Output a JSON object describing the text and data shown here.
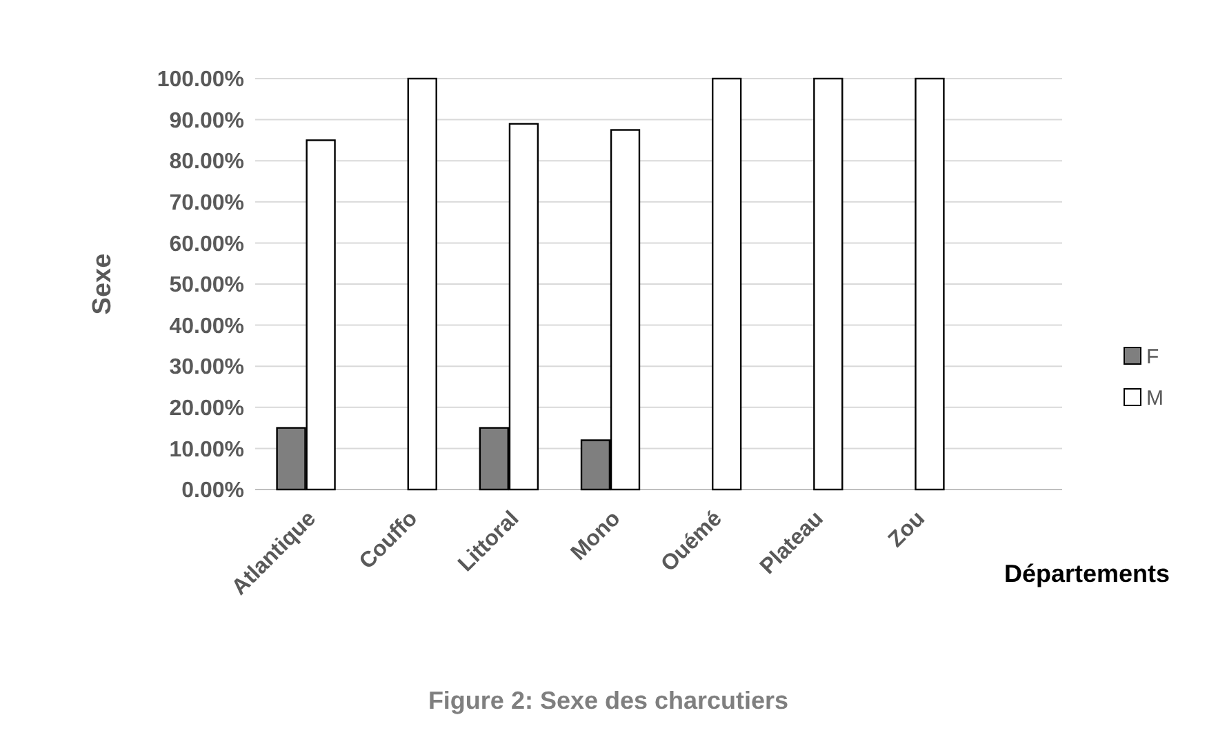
{
  "chart_data": {
    "type": "bar",
    "title": "Figure 2: Sexe des charcutiers",
    "xlabel": "Départements",
    "ylabel": "Sexe",
    "categories": [
      "Atlantique",
      "Couffo",
      "Littoral",
      "Mono",
      "Ouémé",
      "Plateau",
      "Zou"
    ],
    "series": [
      {
        "name": "F",
        "color": "#7f7f7f",
        "values": [
          15,
          0,
          15,
          12,
          0,
          0,
          0
        ]
      },
      {
        "name": "M",
        "color": "#ffffff",
        "values": [
          85,
          100,
          89,
          87.5,
          100,
          100,
          100
        ]
      }
    ],
    "ylim": [
      0,
      100
    ],
    "yticks": [
      {
        "value": 0,
        "label": "0.00%"
      },
      {
        "value": 10,
        "label": "10.00%"
      },
      {
        "value": 20,
        "label": "20.00%"
      },
      {
        "value": 30,
        "label": "30.00%"
      },
      {
        "value": 40,
        "label": "40.00%"
      },
      {
        "value": 50,
        "label": "50.00%"
      },
      {
        "value": 60,
        "label": "60.00%"
      },
      {
        "value": 70,
        "label": "70.00%"
      },
      {
        "value": 80,
        "label": "80.00%"
      },
      {
        "value": 90,
        "label": "90.00%"
      },
      {
        "value": 100,
        "label": "100.00%"
      }
    ],
    "grid": "y",
    "legend": "right"
  }
}
